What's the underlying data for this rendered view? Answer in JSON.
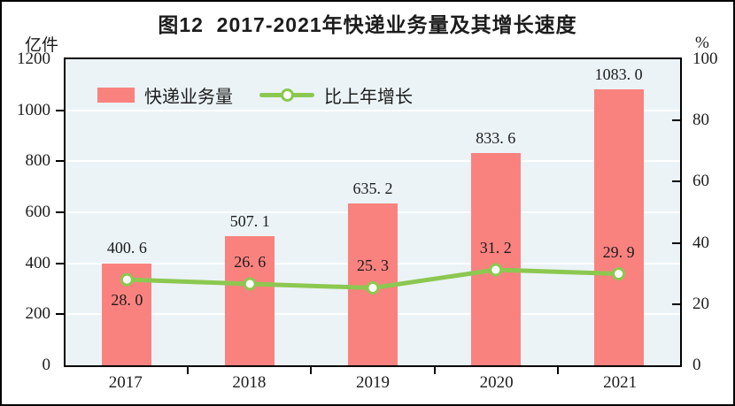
{
  "title": "图12  2017-2021年快递业务量及其增长速度",
  "units": {
    "left": "亿件",
    "right": "%"
  },
  "legend": {
    "bar_label": "快递业务量",
    "line_label": "比上年增长"
  },
  "colors": {
    "bar": "#F9827F",
    "line": "#8CC850",
    "marker_fill": "#FFFFFF",
    "plot_background": "#EBF3F7",
    "gridline": "#FFFFFF",
    "axis": "#000000",
    "text": "#1C1C1C"
  },
  "chart_data": {
    "type": "bar+line",
    "title": "图12 2017-2021年快递业务量及其增长速度",
    "categories": [
      "2017",
      "2018",
      "2019",
      "2020",
      "2021"
    ],
    "series": [
      {
        "name": "快递业务量",
        "type": "bar",
        "axis": "left",
        "unit": "亿件",
        "values": [
          400.6,
          507.1,
          635.2,
          833.6,
          1083.0
        ],
        "labels": [
          "400. 6",
          "507. 1",
          "635. 2",
          "833. 6",
          "1083. 0"
        ]
      },
      {
        "name": "比上年增长",
        "type": "line",
        "axis": "right",
        "unit": "%",
        "values": [
          28.0,
          26.6,
          25.3,
          31.2,
          29.9
        ],
        "labels": [
          "28. 0",
          "26. 6",
          "25. 3",
          "31. 2",
          "29. 9"
        ],
        "label_side": [
          "below",
          "above",
          "above",
          "above",
          "above"
        ]
      }
    ],
    "left_axis": {
      "unit": "亿件",
      "ticks": [
        0,
        200,
        400,
        600,
        800,
        1000,
        1200
      ],
      "min": 0,
      "max": 1200
    },
    "right_axis": {
      "unit": "%",
      "ticks": [
        0,
        20,
        40,
        60,
        80,
        100
      ],
      "min": 0,
      "max": 100
    },
    "grid": true,
    "legend_position": "top-left-inside"
  }
}
